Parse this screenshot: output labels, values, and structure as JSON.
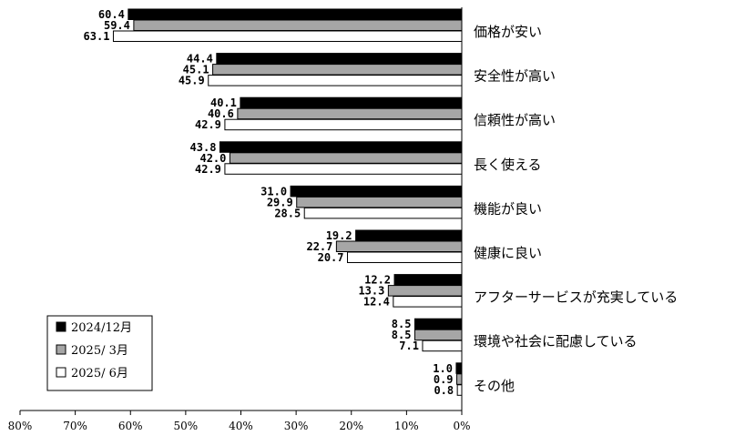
{
  "chart_data": {
    "type": "bar",
    "orientation": "horizontal-reversed",
    "categories": [
      "価格が安い",
      "安全性が高い",
      "信頼性が高い",
      "長く使える",
      "機能が良い",
      "健康に良い",
      "アフターサービスが充実している",
      "環境や社会に配慮している",
      "その他"
    ],
    "series": [
      {
        "name": "2024/12月",
        "color": "#000000",
        "values": [
          60.4,
          44.4,
          40.1,
          43.8,
          31.0,
          19.2,
          12.2,
          8.5,
          1.0
        ],
        "labels": [
          "60.4",
          "44.4",
          "40.1",
          "43.8",
          "31.0",
          "19.2",
          "12.2",
          "8.5",
          "1.0"
        ]
      },
      {
        "name": "2025/ 3月",
        "color": "#a6a6a6",
        "values": [
          59.4,
          45.1,
          40.6,
          42.0,
          29.9,
          22.7,
          13.3,
          8.5,
          0.9
        ],
        "labels": [
          "59.4",
          "45.1",
          "40.6",
          "42.0",
          "29.9",
          "22.7",
          "13.3",
          "8.5",
          "0.9"
        ]
      },
      {
        "name": "2025/ 6月",
        "color": "#ffffff",
        "values": [
          63.1,
          45.9,
          42.9,
          42.9,
          28.5,
          20.7,
          12.4,
          7.1,
          0.8
        ],
        "labels": [
          "63.1",
          "45.9",
          "42.9",
          "42.9",
          "28.5",
          "20.7",
          "12.4",
          "7.1",
          "0.8"
        ]
      }
    ],
    "xlim": [
      0,
      80
    ],
    "xticks": [
      "80%",
      "70%",
      "60%",
      "50%",
      "40%",
      "30%",
      "20%",
      "10%",
      "0%"
    ],
    "legend_position": "lower-left"
  }
}
